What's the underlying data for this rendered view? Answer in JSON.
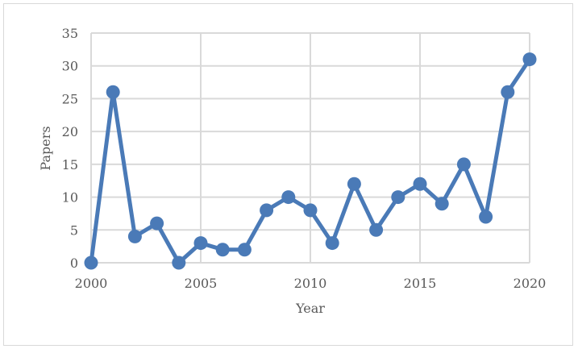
{
  "chart_data": {
    "type": "line",
    "xlabel": "Year",
    "ylabel": "Papers",
    "xlim": [
      2000,
      2020
    ],
    "ylim": [
      0,
      35
    ],
    "x_ticks": [
      2000,
      2005,
      2010,
      2015,
      2020
    ],
    "y_ticks": [
      0,
      5,
      10,
      15,
      20,
      25,
      30,
      35
    ],
    "grid": true,
    "legend": "none",
    "series": [
      {
        "color": "#4a7ab7",
        "x": [
          2000,
          2001,
          2002,
          2003,
          2004,
          2005,
          2006,
          2007,
          2008,
          2009,
          2010,
          2011,
          2012,
          2013,
          2014,
          2015,
          2016,
          2017,
          2018,
          2019,
          2020
        ],
        "values": [
          0,
          26,
          4,
          6,
          0,
          3,
          2,
          2,
          8,
          10,
          8,
          3,
          12,
          5,
          10,
          12,
          9,
          15,
          7,
          26,
          31
        ]
      }
    ]
  }
}
